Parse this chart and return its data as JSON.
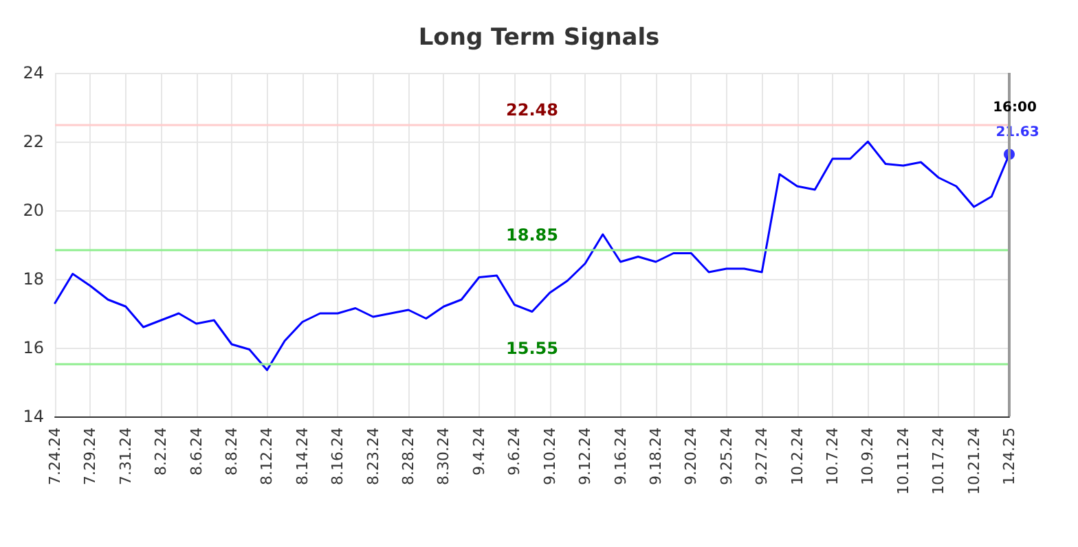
{
  "chart_data": {
    "type": "line",
    "title": "Long Term Signals",
    "categories": [
      "7.24.24",
      null,
      "7.29.24",
      null,
      "7.31.24",
      null,
      "8.2.24",
      null,
      "8.6.24",
      null,
      "8.8.24",
      null,
      "8.12.24",
      null,
      "8.14.24",
      null,
      "8.16.24",
      null,
      "8.23.24",
      null,
      "8.28.24",
      null,
      "8.30.24",
      null,
      "9.4.24",
      null,
      "9.6.24",
      null,
      "9.10.24",
      null,
      "9.12.24",
      null,
      "9.16.24",
      null,
      "9.18.24",
      null,
      "9.20.24",
      null,
      "9.25.24",
      null,
      "9.27.24",
      null,
      "10.2.24",
      null,
      "10.7.24",
      null,
      "10.9.24",
      null,
      "10.11.24",
      null,
      "10.17.24",
      null,
      "10.21.24",
      null,
      "1.24.25"
    ],
    "series": [
      {
        "color": "#0000ff",
        "marker": "none",
        "values": [
          17.3,
          18.15,
          17.8,
          17.4,
          17.2,
          16.6,
          16.8,
          17.0,
          16.7,
          16.8,
          16.1,
          15.95,
          15.35,
          16.2,
          16.75,
          17.0,
          17.0,
          17.15,
          16.9,
          17.0,
          17.1,
          16.85,
          17.2,
          17.4,
          18.05,
          18.1,
          17.25,
          17.05,
          17.6,
          17.95,
          18.45,
          19.3,
          18.5,
          18.65,
          18.5,
          18.75,
          18.75,
          18.2,
          18.3,
          18.3,
          18.2,
          21.05,
          20.7,
          20.6,
          21.5,
          21.5,
          22.0,
          21.35,
          21.3,
          21.4,
          20.95,
          20.7,
          20.1,
          20.4,
          21.63
        ]
      },
      {
        "type": "scatter",
        "marker": "circle",
        "color": "#0000ff",
        "x": [
          "1.24.25"
        ],
        "values": [
          21.63
        ],
        "value_labels": [
          "21.63"
        ]
      }
    ],
    "ylim": [
      14,
      24
    ],
    "yticks": [
      14,
      16,
      18,
      20,
      22,
      24
    ],
    "grid": true,
    "line_style": "solid",
    "ref_lines": [
      {
        "axis": "y",
        "value": 22.48,
        "label": "22.48",
        "color": "#ffcccc"
      },
      {
        "axis": "y",
        "value": 18.85,
        "label": "18.85",
        "color": "#90ee90"
      },
      {
        "axis": "y",
        "value": 15.55,
        "label": "15.55",
        "color": "#90ee90"
      },
      {
        "axis": "x",
        "value": "1.24.25",
        "color": "#999999"
      }
    ],
    "annotations": [
      {
        "text": "16:00",
        "x": "1.24.25",
        "y": 21.63
      }
    ]
  }
}
